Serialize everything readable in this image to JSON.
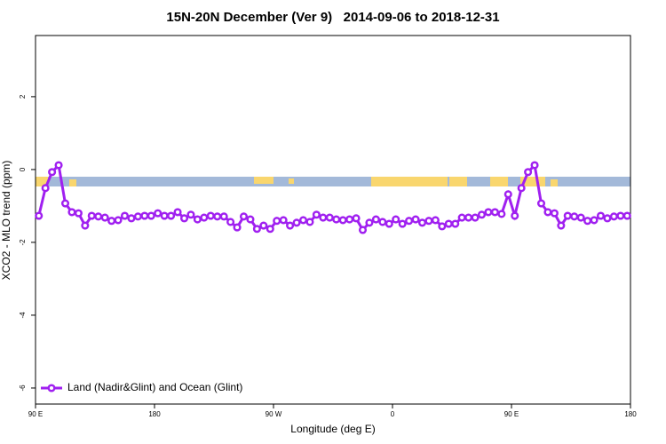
{
  "chart_data": {
    "type": "line",
    "title": "15N-20N December (Ver 9)   2014-09-06 to 2018-12-31",
    "xlabel": "Longitude (deg E)",
    "ylabel": "XCO2 - MLO trend (ppm)",
    "x": [
      92.5,
      97.5,
      102.5,
      107.5,
      112.5,
      117.5,
      122.5,
      127.5,
      132.5,
      137.5,
      142.5,
      147.5,
      152.5,
      157.5,
      162.5,
      167.5,
      172.5,
      177.5,
      182.5,
      187.5,
      192.5,
      197.5,
      202.5,
      207.5,
      212.5,
      217.5,
      222.5,
      227.5,
      232.5,
      237.5,
      242.5,
      247.5,
      252.5,
      257.5,
      262.5,
      267.5,
      272.5,
      277.5,
      282.5,
      287.5,
      292.5,
      297.5,
      302.5,
      307.5,
      312.5,
      317.5,
      322.5,
      327.5,
      332.5,
      337.5,
      342.5,
      347.5,
      352.5,
      357.5,
      362.5,
      367.5,
      372.5,
      377.5,
      382.5,
      387.5,
      392.5,
      397.5,
      402.5,
      407.5,
      412.5,
      417.5,
      422.5,
      427.5,
      432.5,
      437.5,
      442.5,
      447.5,
      452.5,
      457.5,
      462.5,
      467.5,
      472.5,
      477.5,
      482.5,
      487.5,
      492.5,
      497.5,
      502.5,
      507.5,
      512.5,
      517.5,
      522.5,
      527.5,
      532.5,
      537.5
    ],
    "series": [
      {
        "name": "Land (Nadir&Glint) and Ocean (Glint)",
        "color": "#a020f0",
        "values": [
          -1.27,
          -0.51,
          -0.07,
          0.12,
          -0.93,
          -1.17,
          -1.2,
          -1.54,
          -1.27,
          -1.29,
          -1.32,
          -1.41,
          -1.39,
          -1.27,
          -1.34,
          -1.29,
          -1.27,
          -1.27,
          -1.2,
          -1.27,
          -1.27,
          -1.17,
          -1.34,
          -1.24,
          -1.37,
          -1.32,
          -1.27,
          -1.29,
          -1.29,
          -1.44,
          -1.59,
          -1.29,
          -1.37,
          -1.63,
          -1.54,
          -1.63,
          -1.41,
          -1.39,
          -1.54,
          -1.46,
          -1.39,
          -1.44,
          -1.24,
          -1.32,
          -1.32,
          -1.37,
          -1.39,
          -1.37,
          -1.34,
          -1.66,
          -1.46,
          -1.37,
          -1.44,
          -1.49,
          -1.37,
          -1.49,
          -1.41,
          -1.37,
          -1.46,
          -1.41,
          -1.39,
          -1.56,
          -1.49,
          -1.49,
          -1.32,
          -1.32,
          -1.32,
          -1.24,
          -1.17,
          -1.17,
          -1.22,
          -0.68,
          -1.27,
          -0.51,
          -0.07,
          0.12,
          -0.93,
          -1.17,
          -1.2,
          -1.54,
          -1.27,
          -1.29,
          -1.32,
          -1.41,
          -1.39,
          -1.27,
          -1.34,
          -1.29,
          -1.27,
          -1.27
        ]
      }
    ],
    "xlim": [
      90,
      540
    ],
    "xticks": [
      {
        "value": 90,
        "label": "90 E"
      },
      180,
      {
        "value": 270,
        "label": "90 W"
      },
      {
        "value": 360,
        "label": "0"
      },
      {
        "value": 450,
        "label": "90 E"
      },
      {
        "value": 540,
        "label": "180"
      }
    ],
    "ylim": [
      -6.44,
      3.68
    ],
    "yticks": [
      -6,
      -4,
      -2,
      0,
      2
    ],
    "legend": "lower left"
  }
}
